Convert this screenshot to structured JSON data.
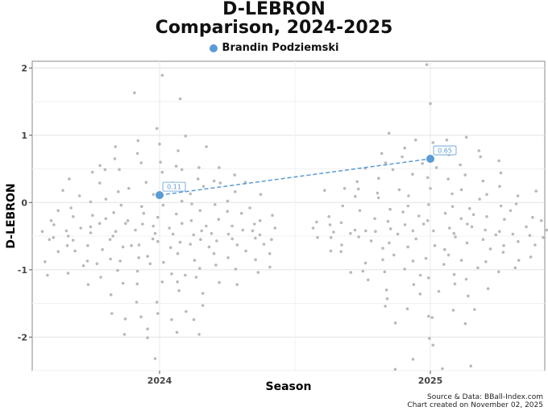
{
  "chart_data": {
    "type": "scatter",
    "title_line1": "D-LEBRON",
    "title_line2": "Comparison, 2024-2025",
    "xlabel": "Season",
    "ylabel": "D-LEBRON",
    "categories": [
      "2024",
      "2025"
    ],
    "ylim": [
      -2.5,
      2.1
    ],
    "yticks": [
      -2,
      -1,
      0,
      1,
      2
    ],
    "highlight": {
      "name": "Brandin Podziemski",
      "color": "#5b9bd5",
      "points": [
        {
          "season": "2024",
          "value": 0.11,
          "label": "0.11"
        },
        {
          "season": "2025",
          "value": 0.65,
          "label": "0.65"
        }
      ]
    },
    "league": {
      "2024": [
        -0.43,
        -0.33,
        -0.55,
        -0.52,
        -0.64,
        -0.42,
        -0.5,
        -0.08,
        -0.27,
        -0.88,
        -0.38,
        -0.56,
        -1.08,
        -1.05,
        -0.73,
        -0.64,
        -0.36,
        -0.12,
        -0.94,
        -0.7,
        -0.21,
        -0.55,
        -0.45,
        0.35,
        0.01,
        -0.31,
        0.18,
        -0.19,
        -0.91,
        0.55,
        0.45,
        -0.72,
        -0.5,
        -0.87,
        0.1,
        -0.24,
        -0.43,
        0.05,
        -1.22,
        -1.37,
        -1.01,
        -0.66,
        -0.31,
        0.29,
        0.65,
        0.49,
        0.16,
        -0.15,
        -0.41,
        -0.84,
        -1.11,
        -1.2,
        -1.73,
        -1.65,
        0.59,
        0.21,
        -0.32,
        -0.64,
        -1.21,
        -1.48,
        -1.96,
        -0.04,
        -1.88,
        -1.7,
        -0.87,
        -0.35,
        0.49,
        1.63,
        0.12,
        -0.27,
        -0.63,
        -1.02,
        -1.48,
        -2.01,
        0.3,
        -0.16,
        0.83,
        -0.46,
        -0.91,
        -1.18,
        -1.31,
        -0.06,
        -0.54,
        1.1,
        0.73,
        0.29,
        -0.22,
        -0.82,
        -2.32,
        -1.74,
        1.89,
        1.54,
        0.87,
        -1.06,
        -1.35,
        0.6,
        0.13,
        -0.58,
        -0.38,
        -0.8,
        -1.18,
        0.92,
        0.54,
        0.24,
        -0.04,
        -0.47,
        -0.67,
        -1.93,
        -1.65,
        0.99,
        0.77,
        0.29,
        -0.17,
        -0.89,
        -1.08,
        -1.62,
        -1.53,
        -1.96,
        0.02,
        -0.31,
        -0.48,
        -0.76,
        -1.11,
        0.45,
        0.16,
        -0.59,
        -0.27,
        -0.86,
        0.83,
        0.49,
        -0.12,
        -0.42,
        -1.74,
        0.52,
        0.35,
        -0.02,
        -0.62,
        -1.19,
        -0.98,
        0.32,
        0.12,
        -0.35,
        -0.76,
        -0.46,
        0.52,
        -0.25,
        -0.93,
        -0.55,
        0.41,
        -0.13,
        -0.82,
        -0.47,
        -0.66,
        -0.03,
        -0.57,
        -0.99,
        -1.22,
        0.3,
        -0.35,
        -0.72,
        -0.16,
        -0.54,
        -1.04,
        -0.85,
        -0.27,
        -0.63,
        -0.96,
        -0.41,
        0.02,
        -0.19,
        -0.53,
        -0.76,
        -0.08,
        -0.42,
        -0.32,
        -0.62,
        -0.48,
        -0.55,
        -0.38
      ],
      "2025": [
        -0.38,
        -0.29,
        -0.33,
        -0.44,
        -0.52,
        -0.46,
        -0.21,
        -0.52,
        -0.72,
        -0.41,
        -0.05,
        -0.3,
        -0.63,
        -1.04,
        0.09,
        -0.12,
        -0.51,
        -0.73,
        -0.24,
        -0.9,
        0.18,
        0.07,
        -0.1,
        -0.42,
        0.51,
        -1.02,
        -0.28,
        -0.57,
        0.73,
        0.21,
        -0.85,
        -1.15,
        0.31,
        -0.05,
        -0.43,
        -0.68,
        -1.3,
        -1.03,
        0.59,
        0.2,
        -0.14,
        -0.39,
        -0.78,
        -0.99,
        -1.43,
        0.14,
        -0.2,
        -0.6,
        -0.87,
        -1.22,
        1.03,
        0.68,
        0.36,
        -0.03,
        -0.47,
        -0.83,
        -1.08,
        -1.36,
        -1.79,
        0.49,
        0.19,
        -0.27,
        -1.54,
        -0.92,
        0.93,
        0.58,
        0.1,
        -0.33,
        -0.66,
        -1.07,
        -1.58,
        -2.48,
        0.81,
        0.42,
        -0.06,
        -0.54,
        -0.97,
        -1.32,
        -2.02,
        -2.12,
        2.05,
        1.47,
        0.93,
        0.37,
        -0.16,
        -0.64,
        -1.12,
        -1.71,
        -2.33,
        -2.47,
        0.89,
        0.52,
        0.21,
        -0.09,
        -0.42,
        -0.78,
        -1.21,
        -1.69,
        -2.43,
        0.71,
        0.35,
        -0.24,
        -0.86,
        -1.6,
        -1.8,
        0.97,
        0.56,
        0.13,
        -0.32,
        -0.7,
        -1.14,
        -1.39,
        0.77,
        0.19,
        -0.51,
        -0.88,
        0.41,
        -0.18,
        -1.03,
        -1.59,
        0.68,
        0.05,
        -0.6,
        -0.97,
        0.32,
        -0.21,
        -0.74,
        -1.28,
        0.62,
        0.12,
        -0.42,
        -0.86,
        0.44,
        -0.05,
        -0.55,
        -0.81,
        0.24,
        -0.25,
        -0.69,
        0.1,
        -0.38,
        -0.64,
        0.17,
        -0.12,
        -0.46,
        -0.32,
        -0.02,
        -0.58,
        -0.22,
        -0.36,
        -0.41,
        -0.63,
        -0.27,
        -0.48,
        -0.43,
        -0.47,
        -0.36,
        -0.49,
        -0.52,
        -0.41
      ]
    },
    "footer": {
      "line1": "Source & Data: BBall-Index.com",
      "line2": "Chart created on November 02, 2025"
    }
  }
}
